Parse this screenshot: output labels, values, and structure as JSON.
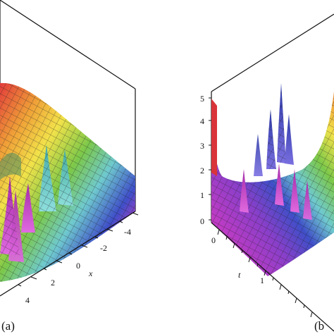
{
  "figure": {
    "panels": [
      {
        "label": "(a)",
        "x_axis": {
          "name": "x",
          "ticks": [
            "-4",
            "-2",
            "0",
            "2",
            "4"
          ]
        }
      },
      {
        "label": "(b",
        "t_axis": {
          "name": "t",
          "ticks": [
            "0",
            "1"
          ]
        },
        "z_axis": {
          "ticks": [
            "0",
            "1",
            "2",
            "3",
            "4",
            "5"
          ]
        }
      }
    ]
  },
  "colors": {
    "frame": "#111111",
    "yellow": "#f2e24a",
    "green": "#7cc84a",
    "cyan": "#6fc9cf",
    "blue": "#3f4fc8",
    "magenta": "#c33bc4",
    "red": "#d8343a",
    "orange": "#ee8a3a",
    "mesh": "#1c1c1c"
  }
}
